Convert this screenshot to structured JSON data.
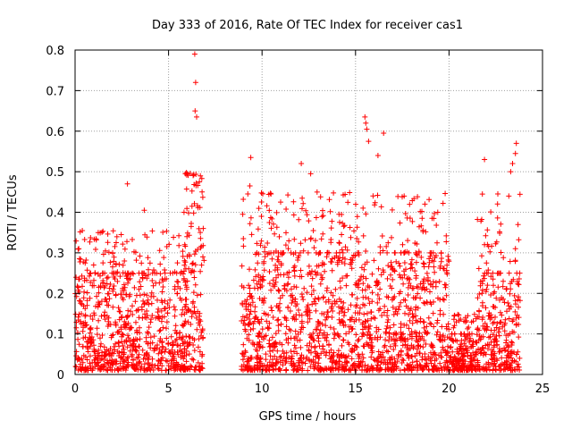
{
  "chart_data": {
    "type": "scatter",
    "title": "Day 333 of 2016, Rate Of TEC Index for receiver cas1",
    "xlabel": "GPS time / hours",
    "ylabel": "ROTI / TECUs",
    "xlim": [
      0,
      25
    ],
    "ylim": [
      0,
      0.8
    ],
    "x_ticks": [
      "0",
      "5",
      "10",
      "15",
      "20",
      "25"
    ],
    "y_ticks": [
      "0",
      "0.1",
      "0.2",
      "0.3",
      "0.4",
      "0.5",
      "0.6",
      "0.7",
      "0.8"
    ],
    "grid": true,
    "marker": "+",
    "color": "#ff0000",
    "notable_points": [
      {
        "x": 6.4,
        "y": 0.79
      },
      {
        "x": 6.45,
        "y": 0.72
      },
      {
        "x": 6.42,
        "y": 0.65
      },
      {
        "x": 6.5,
        "y": 0.635
      },
      {
        "x": 15.5,
        "y": 0.635
      },
      {
        "x": 15.55,
        "y": 0.62
      },
      {
        "x": 15.6,
        "y": 0.605
      },
      {
        "x": 16.5,
        "y": 0.595
      },
      {
        "x": 15.7,
        "y": 0.575
      },
      {
        "x": 23.6,
        "y": 0.57
      },
      {
        "x": 23.55,
        "y": 0.545
      },
      {
        "x": 9.4,
        "y": 0.535
      },
      {
        "x": 21.9,
        "y": 0.53
      },
      {
        "x": 12.1,
        "y": 0.52
      },
      {
        "x": 16.2,
        "y": 0.54
      },
      {
        "x": 23.4,
        "y": 0.52
      },
      {
        "x": 23.3,
        "y": 0.5
      },
      {
        "x": 6.7,
        "y": 0.49
      },
      {
        "x": 5.9,
        "y": 0.495
      },
      {
        "x": 12.6,
        "y": 0.495
      },
      {
        "x": 2.8,
        "y": 0.47
      },
      {
        "x": 9.35,
        "y": 0.465
      },
      {
        "x": 17.6,
        "y": 0.44
      },
      {
        "x": 23.2,
        "y": 0.44
      },
      {
        "x": 3.7,
        "y": 0.405
      },
      {
        "x": 19.4,
        "y": 0.4
      },
      {
        "x": 9.0,
        "y": 0.335
      },
      {
        "x": 21.9,
        "y": 0.32
      },
      {
        "x": 0.2,
        "y": 0.31
      },
      {
        "x": 2.2,
        "y": 0.325
      }
    ],
    "clusters": [
      {
        "x_range": [
          0.0,
          6.0
        ],
        "dense_y_max": 0.25,
        "sparse_y_max": 0.36
      },
      {
        "x_range": [
          5.8,
          6.2
        ],
        "dense_y_max": 0.45,
        "sparse_y_max": 0.5
      },
      {
        "x_range": [
          6.2,
          6.9
        ],
        "dense_y_max": 0.45,
        "sparse_y_max": 0.5
      },
      {
        "x_range": [
          8.9,
          9.6
        ],
        "dense_y_max": 0.22,
        "sparse_y_max": 0.47
      },
      {
        "x_range": [
          9.6,
          20.0
        ],
        "dense_y_max": 0.3,
        "sparse_y_max": 0.45
      },
      {
        "x_range": [
          20.0,
          21.5
        ],
        "dense_y_max": 0.1,
        "sparse_y_max": 0.15
      },
      {
        "x_range": [
          21.5,
          23.8
        ],
        "dense_y_max": 0.25,
        "sparse_y_max": 0.45
      }
    ]
  }
}
